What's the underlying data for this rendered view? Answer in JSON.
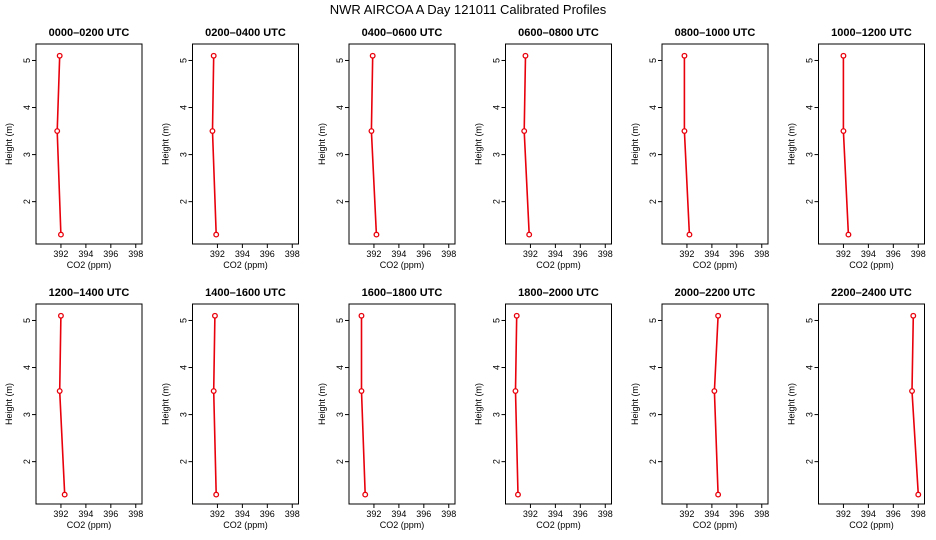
{
  "figure": {
    "title": "NWR AIRCOA A  Day 121011  Calibrated Profiles"
  },
  "style": {
    "series_color": "#e8000b",
    "axis_color": "#000000",
    "background": "#ffffff"
  },
  "chart_data": [
    {
      "type": "line",
      "title": "0000–0200 UTC",
      "xlabel": "CO2 (ppm)",
      "ylabel": "Height (m)",
      "xlim": [
        390,
        398.5
      ],
      "ylim": [
        1.1,
        5.35
      ],
      "xticks": [
        "392",
        "394",
        "396",
        "398"
      ],
      "yticks": [
        "2",
        "3",
        "4",
        "5"
      ],
      "x": [
        392.0,
        391.7,
        391.9
      ],
      "y": [
        1.3,
        3.5,
        5.1
      ]
    },
    {
      "type": "line",
      "title": "0200–0400 UTC",
      "xlabel": "CO2 (ppm)",
      "ylabel": "Height (m)",
      "xlim": [
        390,
        398.5
      ],
      "ylim": [
        1.1,
        5.35
      ],
      "xticks": [
        "392",
        "394",
        "396",
        "398"
      ],
      "yticks": [
        "2",
        "3",
        "4",
        "5"
      ],
      "x": [
        391.9,
        391.6,
        391.7
      ],
      "y": [
        1.3,
        3.5,
        5.1
      ]
    },
    {
      "type": "line",
      "title": "0400–0600 UTC",
      "xlabel": "CO2 (ppm)",
      "ylabel": "Height (m)",
      "xlim": [
        390,
        398.5
      ],
      "ylim": [
        1.1,
        5.35
      ],
      "xticks": [
        "392",
        "394",
        "396",
        "398"
      ],
      "yticks": [
        "2",
        "3",
        "4",
        "5"
      ],
      "x": [
        392.2,
        391.8,
        391.9
      ],
      "y": [
        1.3,
        3.5,
        5.1
      ]
    },
    {
      "type": "line",
      "title": "0600–0800 UTC",
      "xlabel": "CO2 (ppm)",
      "ylabel": "Height (m)",
      "xlim": [
        390,
        398.5
      ],
      "ylim": [
        1.1,
        5.35
      ],
      "xticks": [
        "392",
        "394",
        "396",
        "398"
      ],
      "yticks": [
        "2",
        "3",
        "4",
        "5"
      ],
      "x": [
        391.9,
        391.5,
        391.6
      ],
      "y": [
        1.3,
        3.5,
        5.1
      ]
    },
    {
      "type": "line",
      "title": "0800–1000 UTC",
      "xlabel": "CO2 (ppm)",
      "ylabel": "Height (m)",
      "xlim": [
        390,
        398.5
      ],
      "ylim": [
        1.1,
        5.35
      ],
      "xticks": [
        "392",
        "394",
        "396",
        "398"
      ],
      "yticks": [
        "2",
        "3",
        "4",
        "5"
      ],
      "x": [
        392.2,
        391.8,
        391.8
      ],
      "y": [
        1.3,
        3.5,
        5.1
      ]
    },
    {
      "type": "line",
      "title": "1000–1200 UTC",
      "xlabel": "CO2 (ppm)",
      "ylabel": "Height (m)",
      "xlim": [
        390,
        398.5
      ],
      "ylim": [
        1.1,
        5.35
      ],
      "xticks": [
        "392",
        "394",
        "396",
        "398"
      ],
      "yticks": [
        "2",
        "3",
        "4",
        "5"
      ],
      "x": [
        392.4,
        392.0,
        392.0
      ],
      "y": [
        1.3,
        3.5,
        5.1
      ]
    },
    {
      "type": "line",
      "title": "1200–1400 UTC",
      "xlabel": "CO2 (ppm)",
      "ylabel": "Height (m)",
      "xlim": [
        390,
        398.5
      ],
      "ylim": [
        1.1,
        5.35
      ],
      "xticks": [
        "392",
        "394",
        "396",
        "398"
      ],
      "yticks": [
        "2",
        "3",
        "4",
        "5"
      ],
      "x": [
        392.3,
        391.9,
        392.0
      ],
      "y": [
        1.3,
        3.5,
        5.1
      ]
    },
    {
      "type": "line",
      "title": "1400–1600 UTC",
      "xlabel": "CO2 (ppm)",
      "ylabel": "Height (m)",
      "xlim": [
        390,
        398.5
      ],
      "ylim": [
        1.1,
        5.35
      ],
      "xticks": [
        "392",
        "394",
        "396",
        "398"
      ],
      "yticks": [
        "2",
        "3",
        "4",
        "5"
      ],
      "x": [
        391.9,
        391.7,
        391.8
      ],
      "y": [
        1.3,
        3.5,
        5.1
      ]
    },
    {
      "type": "line",
      "title": "1600–1800 UTC",
      "xlabel": "CO2 (ppm)",
      "ylabel": "Height (m)",
      "xlim": [
        390,
        398.5
      ],
      "ylim": [
        1.1,
        5.35
      ],
      "xticks": [
        "392",
        "394",
        "396",
        "398"
      ],
      "yticks": [
        "2",
        "3",
        "4",
        "5"
      ],
      "x": [
        391.3,
        391.0,
        391.0
      ],
      "y": [
        1.3,
        3.5,
        5.1
      ]
    },
    {
      "type": "line",
      "title": "1800–2000 UTC",
      "xlabel": "CO2 (ppm)",
      "ylabel": "Height (m)",
      "xlim": [
        390,
        398.5
      ],
      "ylim": [
        1.1,
        5.35
      ],
      "xticks": [
        "392",
        "394",
        "396",
        "398"
      ],
      "yticks": [
        "2",
        "3",
        "4",
        "5"
      ],
      "x": [
        391.0,
        390.8,
        390.9
      ],
      "y": [
        1.3,
        3.5,
        5.1
      ]
    },
    {
      "type": "line",
      "title": "2000–2200 UTC",
      "xlabel": "CO2 (ppm)",
      "ylabel": "Height (m)",
      "xlim": [
        390,
        398.5
      ],
      "ylim": [
        1.1,
        5.35
      ],
      "xticks": [
        "392",
        "394",
        "396",
        "398"
      ],
      "yticks": [
        "2",
        "3",
        "4",
        "5"
      ],
      "x": [
        394.5,
        394.2,
        394.5
      ],
      "y": [
        1.3,
        3.5,
        5.1
      ]
    },
    {
      "type": "line",
      "title": "2200–2400 UTC",
      "xlabel": "CO2 (ppm)",
      "ylabel": "Height (m)",
      "xlim": [
        390,
        398.5
      ],
      "ylim": [
        1.1,
        5.35
      ],
      "xticks": [
        "392",
        "394",
        "396",
        "398"
      ],
      "yticks": [
        "2",
        "3",
        "4",
        "5"
      ],
      "x": [
        398.0,
        397.5,
        397.6
      ],
      "y": [
        1.3,
        3.5,
        5.1
      ]
    }
  ]
}
